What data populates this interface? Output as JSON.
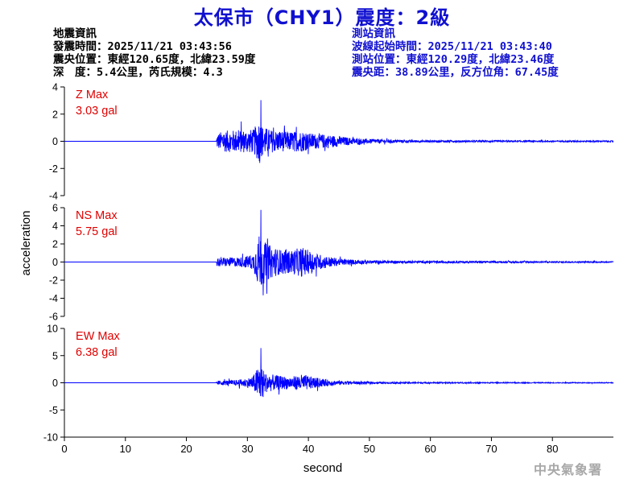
{
  "title": "太保市（CHY1）震度：2級",
  "event_info": {
    "heading": "地震資訊",
    "origin_time": "發震時間：2025/11/21 03:43:56",
    "epicenter": "震央位置：東經120.65度，北緯23.59度",
    "depth_magnitude": "深　度：5.4公里，芮氏規模：4.3"
  },
  "station_info": {
    "heading": "測站資訊",
    "wave_start": "波線起始時間：2025/11/21 03:43:40",
    "location": "測站位置：東經120.29度，北緯23.46度",
    "distance": "震央距：38.89公里，反方位角：67.45度"
  },
  "agency": "中央氣象署",
  "colors": {
    "title": "#1010d0",
    "trace": "#0000ff",
    "max_label": "#e00000",
    "axis": "#000000"
  },
  "chart_data": {
    "type": "line",
    "xlabel": "second",
    "ylabel": "acceleration",
    "xlim": [
      0,
      90
    ],
    "xticks": [
      0,
      10,
      20,
      30,
      40,
      50,
      60,
      70,
      80
    ],
    "grid": false,
    "panels": [
      {
        "name": "Z",
        "max_label": "Z Max",
        "max_value": "3.03 gal",
        "ylim": [
          -4,
          4
        ],
        "yticks": [
          -4,
          -2,
          0,
          2,
          4
        ],
        "envelope": [
          [
            0,
            0
          ],
          [
            24.9,
            0
          ],
          [
            25,
            1.0
          ],
          [
            26,
            1.4
          ],
          [
            28,
            1.5
          ],
          [
            31,
            1.6
          ],
          [
            32,
            3.03
          ],
          [
            32.5,
            2.0
          ],
          [
            34,
            1.5
          ],
          [
            37,
            1.3
          ],
          [
            39,
            1.4
          ],
          [
            40,
            1.1
          ],
          [
            43,
            0.9
          ],
          [
            45,
            0.7
          ],
          [
            47,
            0.45
          ],
          [
            50,
            0.3
          ],
          [
            55,
            0.18
          ],
          [
            60,
            0.14
          ],
          [
            70,
            0.11
          ],
          [
            80,
            0.1
          ],
          [
            90,
            0.09
          ]
        ]
      },
      {
        "name": "NS",
        "max_label": "NS Max",
        "max_value": "5.75 gal",
        "ylim": [
          -6,
          6
        ],
        "yticks": [
          -6,
          -4,
          -2,
          0,
          2,
          4,
          6
        ],
        "envelope": [
          [
            0,
            0
          ],
          [
            24.9,
            0
          ],
          [
            25,
            0.9
          ],
          [
            27,
            0.9
          ],
          [
            29,
            1.0
          ],
          [
            31,
            1.6
          ],
          [
            32,
            5.75
          ],
          [
            33,
            3.8
          ],
          [
            35,
            2.6
          ],
          [
            37,
            2.3
          ],
          [
            39,
            3.0
          ],
          [
            41,
            1.8
          ],
          [
            43,
            1.2
          ],
          [
            45,
            0.7
          ],
          [
            47,
            0.5
          ],
          [
            50,
            0.35
          ],
          [
            55,
            0.25
          ],
          [
            60,
            0.22
          ],
          [
            70,
            0.18
          ],
          [
            80,
            0.15
          ],
          [
            90,
            0.13
          ]
        ]
      },
      {
        "name": "EW",
        "max_label": "EW Max",
        "max_value": "6.38 gal",
        "ylim": [
          -10,
          10
        ],
        "yticks": [
          -10,
          -5,
          0,
          5,
          10
        ],
        "envelope": [
          [
            0,
            0
          ],
          [
            24.9,
            0
          ],
          [
            25,
            0.7
          ],
          [
            28,
            0.9
          ],
          [
            30,
            1.5
          ],
          [
            31,
            2.5
          ],
          [
            32,
            6.38
          ],
          [
            33,
            3.2
          ],
          [
            35,
            2.4
          ],
          [
            37,
            2.0
          ],
          [
            39,
            2.8
          ],
          [
            41,
            1.8
          ],
          [
            43,
            1.1
          ],
          [
            45,
            0.7
          ],
          [
            48,
            0.45
          ],
          [
            52,
            0.3
          ],
          [
            60,
            0.22
          ],
          [
            70,
            0.17
          ],
          [
            80,
            0.14
          ],
          [
            90,
            0.12
          ]
        ]
      }
    ]
  }
}
